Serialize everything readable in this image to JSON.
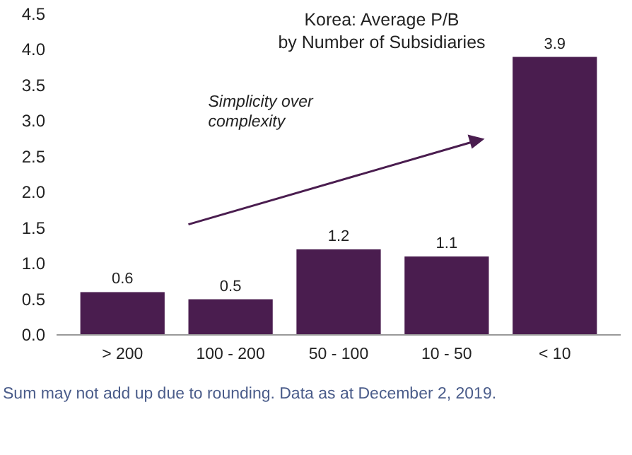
{
  "chart_data": {
    "type": "bar",
    "title": "Korea: Average P/B\nby Number of Subsidiaries",
    "categories": [
      "> 200",
      "100 - 200",
      "50 - 100",
      "10 - 50",
      "< 10"
    ],
    "values": [
      0.6,
      0.5,
      1.2,
      1.1,
      3.9
    ],
    "color": "#4a1d4f",
    "data_labels": true,
    "ylim": [
      0,
      4.5
    ],
    "yticks": [
      {
        "value": 0,
        "label": "0.0"
      },
      {
        "value": 0.5,
        "label": "0.5"
      },
      {
        "value": 1,
        "label": "1.0"
      },
      {
        "value": 1.5,
        "label": "1.5"
      },
      {
        "value": 2,
        "label": "2.0"
      },
      {
        "value": 2.5,
        "label": "2.5"
      },
      {
        "value": 3,
        "label": "3.0"
      },
      {
        "value": 3.5,
        "label": "3.5"
      },
      {
        "value": 4,
        "label": "4.0"
      },
      {
        "value": 4.5,
        "label": "4.5"
      }
    ],
    "grid": false,
    "annotations": [
      "Simplicity over\ncomplexity",
      "Sum may not add up due to rounding. Data as at December 2, 2019."
    ]
  }
}
